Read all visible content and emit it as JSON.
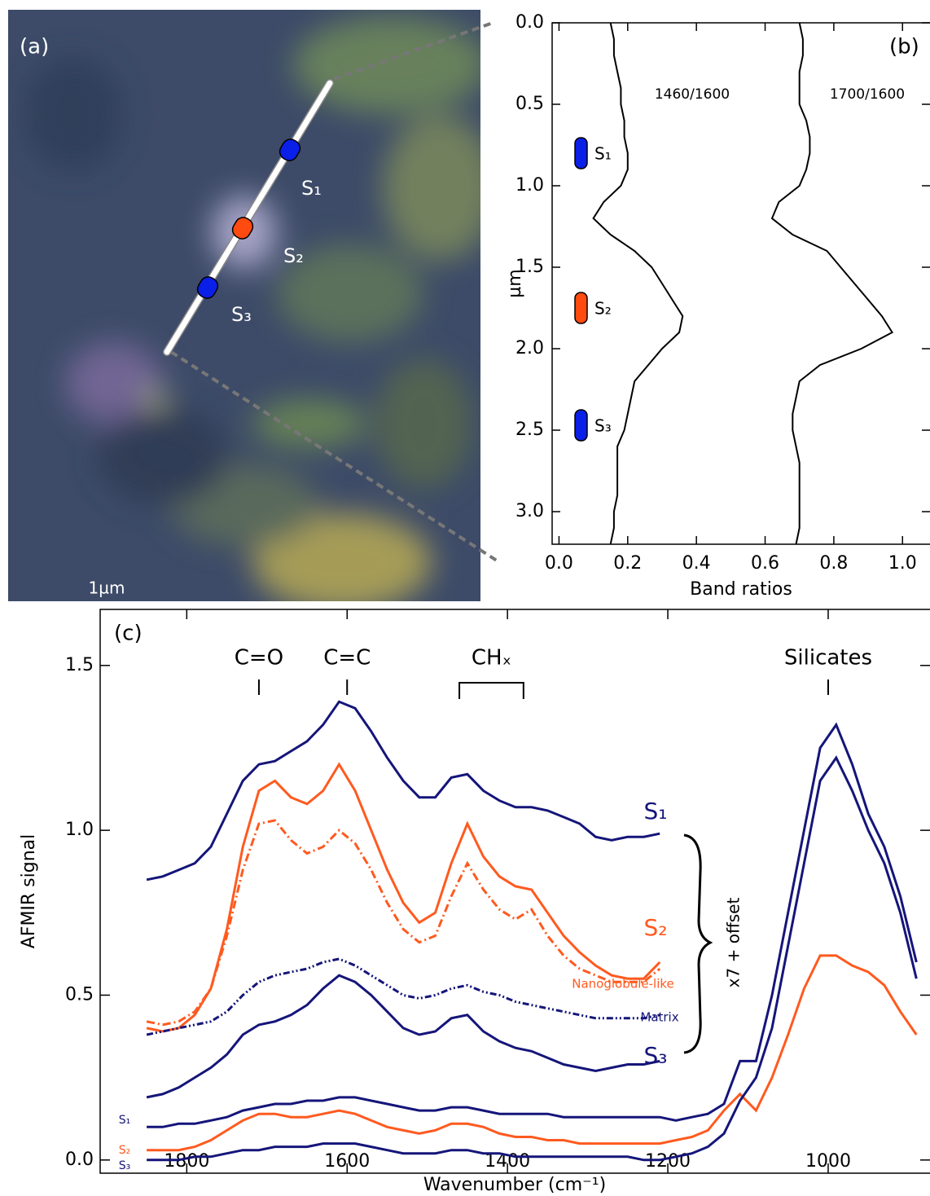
{
  "image_panel": {
    "label": "(a)",
    "sites": [
      "S₁",
      "S₂",
      "S₃"
    ],
    "scale_bar": "1µm"
  },
  "chart_data": [
    {
      "type": "line",
      "title": "(b)",
      "ylabel": "µm",
      "xlabel": "Band ratios",
      "xlim": [
        -0.02,
        1.08
      ],
      "ylim": [
        3.2,
        0
      ],
      "xticks": [
        {
          "value": 0,
          "label": "0.0"
        },
        0.2,
        0.4,
        0.6,
        0.8,
        {
          "value": 1,
          "label": "1.0"
        }
      ],
      "yticks": [
        {
          "value": 0,
          "label": "0.0"
        },
        0.5,
        {
          "value": 1,
          "label": "1.0"
        },
        1.5,
        {
          "value": 2,
          "label": "2.0"
        },
        2.5,
        {
          "value": 3,
          "label": "3.0"
        }
      ],
      "y": [
        0.0,
        0.1,
        0.2,
        0.3,
        0.4,
        0.5,
        0.6,
        0.7,
        0.8,
        0.9,
        1.0,
        1.1,
        1.2,
        1.3,
        1.4,
        1.5,
        1.6,
        1.7,
        1.8,
        1.9,
        2.0,
        2.1,
        2.2,
        2.3,
        2.4,
        2.5,
        2.6,
        2.7,
        2.8,
        2.9,
        3.0,
        3.1,
        3.2
      ],
      "series": [
        {
          "name": "1460/1600",
          "color": "#000000",
          "values": [
            0.15,
            0.16,
            0.16,
            0.17,
            0.18,
            0.18,
            0.19,
            0.19,
            0.2,
            0.2,
            0.18,
            0.13,
            0.1,
            0.15,
            0.22,
            0.27,
            0.3,
            0.33,
            0.36,
            0.35,
            0.3,
            0.26,
            0.22,
            0.21,
            0.2,
            0.19,
            0.17,
            0.17,
            0.17,
            0.17,
            0.16,
            0.16,
            0.15
          ]
        },
        {
          "name": "1700/1600",
          "color": "#000000",
          "values": [
            0.7,
            0.71,
            0.71,
            0.7,
            0.7,
            0.7,
            0.72,
            0.73,
            0.73,
            0.72,
            0.7,
            0.64,
            0.62,
            0.68,
            0.78,
            0.82,
            0.86,
            0.9,
            0.94,
            0.97,
            0.88,
            0.76,
            0.7,
            0.69,
            0.68,
            0.68,
            0.69,
            0.7,
            0.7,
            0.7,
            0.7,
            0.7,
            0.69
          ]
        }
      ],
      "markers": [
        {
          "name": "S₁",
          "depth": 0.8,
          "color": "#0a1fe8"
        },
        {
          "name": "S₂",
          "depth": 1.75,
          "color": "#ff4a10"
        },
        {
          "name": "S₃",
          "depth": 2.47,
          "color": "#0a1fe8"
        }
      ]
    },
    {
      "type": "line",
      "title": "(c)",
      "xlabel": "Wavenumber (cm⁻¹)",
      "ylabel": "AFMIR signal",
      "xlim": [
        1908,
        873
      ],
      "ylim": [
        -0.04,
        1.67
      ],
      "xticks": [
        1800,
        1600,
        1400,
        1200,
        1000
      ],
      "yticks": [
        {
          "value": 0,
          "label": "0.0"
        },
        0.5,
        {
          "value": 1,
          "label": "1.0"
        },
        1.5
      ],
      "x": [
        1850,
        1830,
        1810,
        1790,
        1770,
        1750,
        1730,
        1710,
        1690,
        1670,
        1650,
        1630,
        1610,
        1590,
        1570,
        1550,
        1530,
        1510,
        1490,
        1470,
        1450,
        1430,
        1410,
        1390,
        1370,
        1350,
        1330,
        1310,
        1290,
        1270,
        1250,
        1230,
        1210,
        1190,
        1170,
        1150,
        1130,
        1110,
        1090,
        1070,
        1050,
        1030,
        1010,
        990,
        970,
        950,
        930,
        910,
        890
      ],
      "series": [
        {
          "name": "S₁",
          "color": "#15157a",
          "dash": "solid",
          "values": [
            0.85,
            0.86,
            0.88,
            0.9,
            0.95,
            1.05,
            1.15,
            1.2,
            1.21,
            1.24,
            1.27,
            1.32,
            1.39,
            1.37,
            1.3,
            1.22,
            1.15,
            1.1,
            1.1,
            1.16,
            1.17,
            1.12,
            1.09,
            1.07,
            1.07,
            1.06,
            1.04,
            1.02,
            0.98,
            0.97,
            0.98,
            0.98,
            0.99,
            null,
            null,
            null,
            null,
            null,
            null,
            null,
            null,
            null,
            null,
            null,
            null,
            null,
            null,
            null,
            null
          ]
        },
        {
          "name": "S₂",
          "color": "#ff5a1f",
          "dash": "solid",
          "values": [
            0.4,
            0.39,
            0.4,
            0.44,
            0.52,
            0.7,
            0.95,
            1.12,
            1.15,
            1.1,
            1.08,
            1.12,
            1.2,
            1.12,
            1.0,
            0.88,
            0.78,
            0.72,
            0.75,
            0.9,
            1.02,
            0.92,
            0.86,
            0.83,
            0.82,
            0.75,
            0.68,
            0.63,
            0.59,
            0.56,
            0.55,
            0.55,
            0.6,
            null,
            null,
            null,
            null,
            null,
            null,
            null,
            null,
            null,
            null,
            null,
            null,
            null,
            null,
            null,
            null
          ]
        },
        {
          "name": "Nanoglobule-like",
          "color": "#ff5a1f",
          "dash": "dashdot",
          "values": [
            0.42,
            0.41,
            0.42,
            0.45,
            0.52,
            0.68,
            0.88,
            1.02,
            1.03,
            0.97,
            0.93,
            0.95,
            1.0,
            0.96,
            0.88,
            0.78,
            0.7,
            0.66,
            0.68,
            0.8,
            0.9,
            0.82,
            0.76,
            0.73,
            0.76,
            0.68,
            0.62,
            0.58,
            0.56,
            0.54,
            0.54,
            0.54,
            0.58,
            null,
            null,
            null,
            null,
            null,
            null,
            null,
            null,
            null,
            null,
            null,
            null,
            null,
            null,
            null,
            null
          ]
        },
        {
          "name": "Matrix",
          "color": "#15157a",
          "dash": "dashdotdot",
          "values": [
            0.38,
            0.39,
            0.4,
            0.41,
            0.42,
            0.45,
            0.5,
            0.54,
            0.56,
            0.57,
            0.58,
            0.6,
            0.61,
            0.59,
            0.56,
            0.53,
            0.5,
            0.49,
            0.5,
            0.52,
            0.53,
            0.51,
            0.5,
            0.48,
            0.47,
            0.46,
            0.45,
            0.44,
            0.43,
            0.43,
            0.43,
            0.43,
            0.44,
            null,
            null,
            null,
            null,
            null,
            null,
            null,
            null,
            null,
            null,
            null,
            null,
            null,
            null,
            null,
            null
          ]
        },
        {
          "name": "S₃",
          "color": "#15157a",
          "dash": "solid",
          "values": [
            0.19,
            0.2,
            0.22,
            0.25,
            0.28,
            0.32,
            0.38,
            0.41,
            0.42,
            0.44,
            0.47,
            0.52,
            0.56,
            0.54,
            0.5,
            0.45,
            0.4,
            0.38,
            0.39,
            0.43,
            0.44,
            0.39,
            0.36,
            0.34,
            0.33,
            0.31,
            0.29,
            0.28,
            0.27,
            0.28,
            0.29,
            0.29,
            0.3,
            null,
            null,
            null,
            null,
            null,
            null,
            null,
            null,
            null,
            null,
            null,
            null,
            null,
            null,
            null,
            null
          ]
        },
        {
          "name": "S₁",
          "color": "#15157a",
          "dash": "solid",
          "values": [
            0.1,
            0.1,
            0.11,
            0.11,
            0.12,
            0.13,
            0.15,
            0.16,
            0.17,
            0.17,
            0.18,
            0.18,
            0.19,
            0.19,
            0.18,
            0.17,
            0.16,
            0.15,
            0.15,
            0.16,
            0.16,
            0.15,
            0.14,
            0.14,
            0.14,
            0.14,
            0.13,
            0.13,
            0.13,
            0.13,
            0.13,
            0.13,
            0.13,
            0.12,
            0.13,
            0.14,
            0.17,
            0.3,
            0.3,
            0.5,
            0.75,
            1.0,
            1.25,
            1.32,
            1.2,
            1.05,
            0.95,
            0.8,
            0.6
          ]
        },
        {
          "name": "S₂",
          "color": "#ff5a1f",
          "dash": "solid",
          "values": [
            0.03,
            0.03,
            0.03,
            0.04,
            0.06,
            0.09,
            0.12,
            0.14,
            0.14,
            0.13,
            0.13,
            0.14,
            0.15,
            0.14,
            0.12,
            0.1,
            0.09,
            0.08,
            0.09,
            0.11,
            0.11,
            0.1,
            0.08,
            0.07,
            0.07,
            0.06,
            0.06,
            0.05,
            0.05,
            0.05,
            0.05,
            0.05,
            0.05,
            0.06,
            0.07,
            0.09,
            0.15,
            0.2,
            0.15,
            0.25,
            0.38,
            0.52,
            0.62,
            0.62,
            0.59,
            0.57,
            0.53,
            0.45,
            0.38
          ]
        },
        {
          "name": "S₃",
          "color": "#15157a",
          "dash": "solid",
          "values": [
            0.0,
            0.0,
            0.0,
            0.01,
            0.01,
            0.02,
            0.03,
            0.03,
            0.04,
            0.04,
            0.04,
            0.05,
            0.05,
            0.05,
            0.04,
            0.03,
            0.02,
            0.02,
            0.02,
            0.03,
            0.03,
            0.02,
            0.02,
            0.01,
            0.01,
            0.01,
            0.01,
            0.01,
            0.01,
            0.01,
            0.01,
            0.0,
            0.0,
            0.01,
            0.02,
            0.04,
            0.08,
            0.18,
            0.25,
            0.4,
            0.65,
            0.9,
            1.15,
            1.22,
            1.12,
            1.0,
            0.9,
            0.75,
            0.55
          ]
        }
      ],
      "annotations": [
        {
          "text": "C=O",
          "x": 1710
        },
        {
          "text": "C=C",
          "x": 1600
        },
        {
          "text": "CHₓ",
          "x": [
            1460,
            1380
          ]
        },
        {
          "text": "Silicates",
          "x": 1000
        }
      ],
      "scale_note": "x7 + offset"
    }
  ]
}
